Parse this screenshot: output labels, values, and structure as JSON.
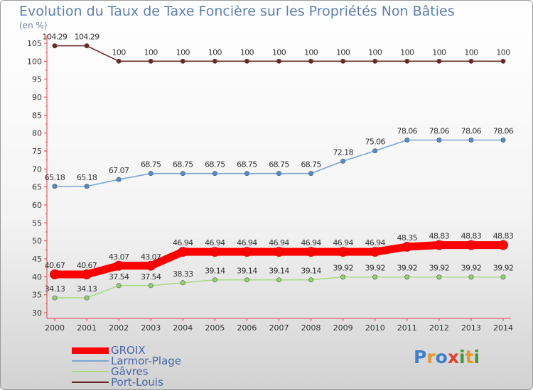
{
  "title": "Evolution du Taux de Taxe Foncière sur les Propriétés Non Bâties",
  "unit_label": "(en %)",
  "chart_data": {
    "type": "line",
    "categories": [
      "2000",
      "2001",
      "2002",
      "2003",
      "2004",
      "2005",
      "2006",
      "2007",
      "2008",
      "2009",
      "2010",
      "2011",
      "2012",
      "2013",
      "2014"
    ],
    "ylim": [
      30,
      105
    ],
    "yticks": [
      30,
      35,
      40,
      45,
      50,
      55,
      60,
      65,
      70,
      75,
      80,
      85,
      90,
      95,
      100,
      105
    ],
    "grid": false,
    "legend_position": "bottom-left",
    "series": [
      {
        "name": "GROIX",
        "color": "#ff0000",
        "marker_color": "#ff0000",
        "emphasis": true,
        "values": [
          40.67,
          40.67,
          43.07,
          43.07,
          46.94,
          46.94,
          46.94,
          46.94,
          46.94,
          46.94,
          46.94,
          48.35,
          48.83,
          48.83,
          48.83
        ],
        "labels": [
          "40.67",
          "40.67",
          "43.07",
          "43.07",
          "46.94",
          "46.94",
          "46.94",
          "46.94",
          "46.94",
          "46.94",
          "46.94",
          "48.35",
          "48.83",
          "48.83",
          "48.83"
        ]
      },
      {
        "name": "Larmor-Plage",
        "color": "#7ba7d2",
        "marker_color": "#4a8ed6",
        "emphasis": false,
        "values": [
          65.18,
          65.18,
          67.07,
          68.75,
          68.75,
          68.75,
          68.75,
          68.75,
          68.75,
          72.18,
          75.06,
          78.06,
          78.06,
          78.06,
          78.06
        ],
        "labels": [
          "65.18",
          "65.18",
          "67.07",
          "68.75",
          "68.75",
          "68.75",
          "68.75",
          "68.75",
          "68.75",
          "72.18",
          "75.06",
          "78.06",
          "78.06",
          "78.06",
          "78.06"
        ]
      },
      {
        "name": "Gâvres",
        "color": "#a8dc82",
        "marker_color": "#8fd16a",
        "emphasis": false,
        "values": [
          34.13,
          34.13,
          37.54,
          37.54,
          38.33,
          39.14,
          39.14,
          39.14,
          39.14,
          39.92,
          39.92,
          39.92,
          39.92,
          39.92,
          39.92
        ],
        "labels": [
          "34.13",
          "34.13",
          "37.54",
          "37.54",
          "38.33",
          "39.14",
          "39.14",
          "39.14",
          "39.14",
          "39.92",
          "39.92",
          "39.92",
          "39.92",
          "39.92",
          "39.92"
        ]
      },
      {
        "name": "Port-Louis",
        "color": "#6b2a2a",
        "marker_color": "#7a2222",
        "emphasis": false,
        "values": [
          104.29,
          104.29,
          100,
          100,
          100,
          100,
          100,
          100,
          100,
          100,
          100,
          100,
          100,
          100,
          100
        ],
        "labels": [
          "104.29",
          "104.29",
          "100",
          "100",
          "100",
          "100",
          "100",
          "100",
          "100",
          "100",
          "100",
          "100",
          "100",
          "100",
          "100"
        ]
      }
    ]
  },
  "logo": {
    "letters": [
      "P",
      "r",
      "o",
      "x",
      "i",
      "t",
      "i"
    ],
    "colors": [
      "#3a7fd0",
      "#e8962a",
      "#3a7fd0",
      "#e0402a",
      "#3a9a3a",
      "#e8962a",
      "#3a9a3a"
    ]
  }
}
